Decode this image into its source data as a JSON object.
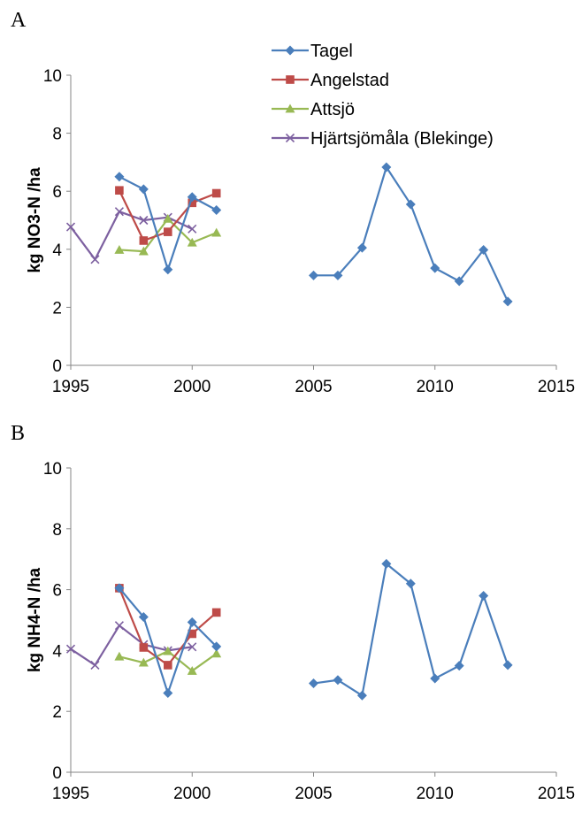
{
  "panels": [
    {
      "label": "A"
    },
    {
      "label": "B"
    }
  ],
  "legend": {
    "entries": [
      {
        "name": "Tagel",
        "color": "#4a7ebb",
        "marker": "diamond"
      },
      {
        "name": "Angelstad",
        "color": "#be4b48",
        "marker": "square"
      },
      {
        "name": "Attsjö",
        "color": "#98b954",
        "marker": "triangle"
      },
      {
        "name": "Hjärtsjömåla (Blekinge)",
        "color": "#7d60a0",
        "marker": "x"
      }
    ]
  },
  "chart_data": [
    {
      "type": "line",
      "title": "",
      "xlabel": "",
      "ylabel": "kg NO3-N /ha",
      "xlim": [
        1995,
        2015
      ],
      "ylim": [
        0,
        10
      ],
      "xticks": [
        1995,
        2000,
        2005,
        2010,
        2015
      ],
      "yticks": [
        0,
        2,
        4,
        6,
        8,
        10
      ],
      "grid": false,
      "legend_position": "top-right",
      "series": [
        {
          "name": "Tagel",
          "segments": [
            [
              [
                1997,
                6.5
              ],
              [
                1998,
                6.07
              ],
              [
                1999,
                3.3
              ],
              [
                2000,
                5.8
              ],
              [
                2001,
                5.35
              ]
            ],
            [
              [
                2005,
                3.1
              ],
              [
                2006,
                3.1
              ],
              [
                2007,
                4.05
              ],
              [
                2008,
                6.83
              ],
              [
                2009,
                5.55
              ],
              [
                2010,
                3.35
              ],
              [
                2011,
                2.9
              ],
              [
                2012,
                3.98
              ],
              [
                2013,
                2.2
              ]
            ]
          ]
        },
        {
          "name": "Angelstad",
          "segments": [
            [
              [
                1997,
                6.03
              ],
              [
                1998,
                4.3
              ],
              [
                1999,
                4.6
              ],
              [
                2000,
                5.6
              ],
              [
                2001,
                5.93
              ]
            ]
          ]
        },
        {
          "name": "Attsjö",
          "segments": [
            [
              [
                1997,
                3.98
              ],
              [
                1998,
                3.93
              ],
              [
                1999,
                5.05
              ],
              [
                2000,
                4.23
              ],
              [
                2001,
                4.57
              ]
            ]
          ]
        },
        {
          "name": "Hjärtsjömåla (Blekinge)",
          "segments": [
            [
              [
                1995,
                4.77
              ],
              [
                1996,
                3.65
              ],
              [
                1997,
                5.3
              ],
              [
                1998,
                5.0
              ],
              [
                1999,
                5.1
              ],
              [
                2000,
                4.7
              ]
            ]
          ]
        }
      ]
    },
    {
      "type": "line",
      "title": "",
      "xlabel": "",
      "ylabel": "kg NH4-N /ha",
      "xlim": [
        1995,
        2015
      ],
      "ylim": [
        0,
        10
      ],
      "xticks": [
        1995,
        2000,
        2005,
        2010,
        2015
      ],
      "yticks": [
        0,
        2,
        4,
        6,
        8,
        10
      ],
      "grid": false,
      "series": [
        {
          "name": "Tagel",
          "segments": [
            [
              [
                1997,
                6.05
              ],
              [
                1998,
                5.1
              ],
              [
                1999,
                2.6
              ],
              [
                2000,
                4.93
              ],
              [
                2001,
                4.13
              ]
            ],
            [
              [
                2005,
                2.92
              ],
              [
                2006,
                3.03
              ],
              [
                2007,
                2.52
              ],
              [
                2008,
                6.85
              ],
              [
                2009,
                6.2
              ],
              [
                2010,
                3.08
              ],
              [
                2011,
                3.5
              ],
              [
                2012,
                5.8
              ],
              [
                2013,
                3.52
              ]
            ]
          ]
        },
        {
          "name": "Angelstad",
          "segments": [
            [
              [
                1997,
                6.05
              ],
              [
                1998,
                4.1
              ],
              [
                1999,
                3.52
              ],
              [
                2000,
                4.55
              ],
              [
                2001,
                5.25
              ]
            ]
          ]
        },
        {
          "name": "Attsjö",
          "segments": [
            [
              [
                1997,
                3.8
              ],
              [
                1998,
                3.6
              ],
              [
                1999,
                3.98
              ],
              [
                2000,
                3.33
              ],
              [
                2001,
                3.9
              ]
            ]
          ]
        },
        {
          "name": "Hjärtsjömåla (Blekinge)",
          "segments": [
            [
              [
                1995,
                4.05
              ],
              [
                1996,
                3.52
              ],
              [
                1997,
                4.82
              ],
              [
                1998,
                4.2
              ],
              [
                1999,
                4.0
              ],
              [
                2000,
                4.12
              ]
            ]
          ]
        }
      ]
    }
  ]
}
